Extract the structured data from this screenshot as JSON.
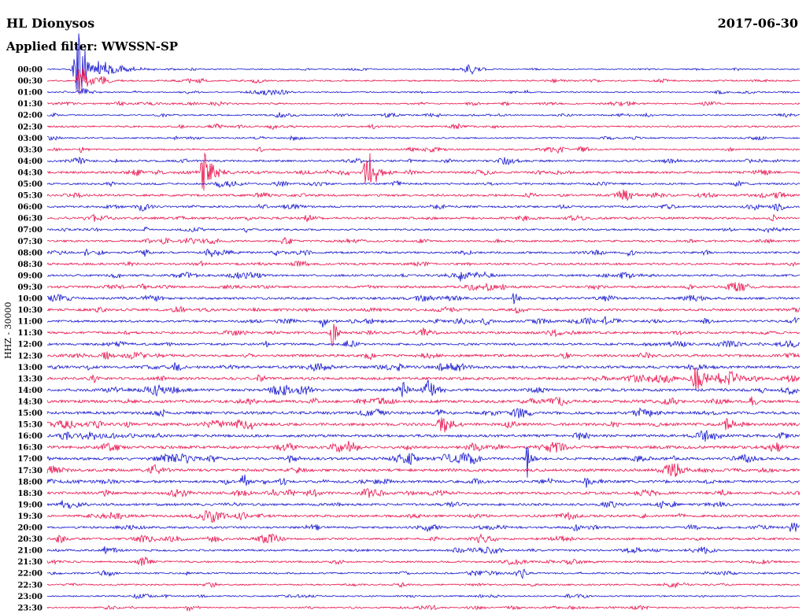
{
  "header": {
    "station": "HL Dionysos",
    "filter": "Applied filter: WWSSN-SP",
    "date": "2017-06-30",
    "channel_scale": "HHZ - 30000"
  },
  "chart_data": {
    "type": "line",
    "subtype": "helicorder",
    "title": "HL Dionysos",
    "date": "2017-06-30",
    "filter": "WWSSN-SP",
    "ylabel": "HHZ - 30000",
    "xlabel": "",
    "row_duration_minutes": 30,
    "x_axis": {
      "start": "00:00",
      "end": "24:00"
    },
    "grid": false,
    "legend": "none",
    "colors": {
      "blue": "#1313cd",
      "red": "#e8104c"
    },
    "rows": [
      {
        "time": "00:00",
        "color": "blue",
        "noise": 0.7
      },
      {
        "time": "00:30",
        "color": "red",
        "noise": 1.0
      },
      {
        "time": "01:00",
        "color": "blue",
        "noise": 0.8
      },
      {
        "time": "01:30",
        "color": "red",
        "noise": 0.9
      },
      {
        "time": "02:00",
        "color": "blue",
        "noise": 0.9
      },
      {
        "time": "02:30",
        "color": "red",
        "noise": 1.1
      },
      {
        "time": "03:00",
        "color": "blue",
        "noise": 1.0
      },
      {
        "time": "03:30",
        "color": "red",
        "noise": 1.1
      },
      {
        "time": "04:00",
        "color": "blue",
        "noise": 1.3
      },
      {
        "time": "04:30",
        "color": "red",
        "noise": 1.5
      },
      {
        "time": "05:00",
        "color": "blue",
        "noise": 1.3
      },
      {
        "time": "05:30",
        "color": "red",
        "noise": 1.5
      },
      {
        "time": "06:00",
        "color": "blue",
        "noise": 1.3
      },
      {
        "time": "06:30",
        "color": "red",
        "noise": 1.5
      },
      {
        "time": "07:00",
        "color": "blue",
        "noise": 1.2
      },
      {
        "time": "07:30",
        "color": "red",
        "noise": 1.3
      },
      {
        "time": "08:00",
        "color": "blue",
        "noise": 1.3
      },
      {
        "time": "08:30",
        "color": "red",
        "noise": 1.4
      },
      {
        "time": "09:00",
        "color": "blue",
        "noise": 1.4
      },
      {
        "time": "09:30",
        "color": "red",
        "noise": 1.5
      },
      {
        "time": "10:00",
        "color": "blue",
        "noise": 1.5
      },
      {
        "time": "10:30",
        "color": "red",
        "noise": 1.6
      },
      {
        "time": "11:00",
        "color": "blue",
        "noise": 1.5
      },
      {
        "time": "11:30",
        "color": "red",
        "noise": 1.6
      },
      {
        "time": "12:00",
        "color": "blue",
        "noise": 1.5
      },
      {
        "time": "12:30",
        "color": "red",
        "noise": 1.7
      },
      {
        "time": "13:00",
        "color": "blue",
        "noise": 1.8
      },
      {
        "time": "13:30",
        "color": "red",
        "noise": 1.8
      },
      {
        "time": "14:00",
        "color": "blue",
        "noise": 1.8
      },
      {
        "time": "14:30",
        "color": "red",
        "noise": 1.9
      },
      {
        "time": "15:00",
        "color": "blue",
        "noise": 1.9
      },
      {
        "time": "15:30",
        "color": "red",
        "noise": 1.9
      },
      {
        "time": "16:00",
        "color": "blue",
        "noise": 1.8
      },
      {
        "time": "16:30",
        "color": "red",
        "noise": 1.9
      },
      {
        "time": "17:00",
        "color": "blue",
        "noise": 1.8
      },
      {
        "time": "17:30",
        "color": "red",
        "noise": 1.8
      },
      {
        "time": "18:00",
        "color": "blue",
        "noise": 1.7
      },
      {
        "time": "18:30",
        "color": "red",
        "noise": 1.7
      },
      {
        "time": "19:00",
        "color": "blue",
        "noise": 1.6
      },
      {
        "time": "19:30",
        "color": "red",
        "noise": 1.6
      },
      {
        "time": "20:00",
        "color": "blue",
        "noise": 1.4
      },
      {
        "time": "20:30",
        "color": "red",
        "noise": 1.4
      },
      {
        "time": "21:00",
        "color": "blue",
        "noise": 1.3
      },
      {
        "time": "21:30",
        "color": "red",
        "noise": 1.2
      },
      {
        "time": "22:00",
        "color": "blue",
        "noise": 1.1
      },
      {
        "time": "22:30",
        "color": "red",
        "noise": 1.0
      },
      {
        "time": "23:00",
        "color": "blue",
        "noise": 0.9
      },
      {
        "time": "23:30",
        "color": "red",
        "noise": 0.9
      }
    ],
    "events": [
      {
        "row": 0,
        "x": 0.042,
        "amp": 58,
        "attack": 4,
        "decay": 10
      },
      {
        "row": 0,
        "x": 0.07,
        "amp": 10,
        "attack": 6,
        "decay": 30
      },
      {
        "row": 0,
        "x": 0.56,
        "amp": 9,
        "attack": 4,
        "decay": 10
      },
      {
        "row": 1,
        "x": 0.045,
        "amp": 20,
        "attack": 4,
        "decay": 12
      },
      {
        "row": 1,
        "x": 0.075,
        "amp": 6,
        "attack": 3,
        "decay": 10
      },
      {
        "row": 2,
        "x": 0.045,
        "amp": 8,
        "attack": 3,
        "decay": 10
      },
      {
        "row": 5,
        "x": 0.3,
        "amp": 4,
        "attack": 3,
        "decay": 8
      },
      {
        "row": 7,
        "x": 0.045,
        "amp": 4,
        "attack": 2,
        "decay": 6
      },
      {
        "row": 9,
        "x": 0.209,
        "amp": 26,
        "attack": 4,
        "decay": 12
      },
      {
        "row": 9,
        "x": 0.427,
        "amp": 30,
        "attack": 4,
        "decay": 10
      },
      {
        "row": 13,
        "x": 0.345,
        "amp": 5,
        "attack": 3,
        "decay": 8
      },
      {
        "row": 16,
        "x": 0.052,
        "amp": 5,
        "attack": 3,
        "decay": 6
      },
      {
        "row": 16,
        "x": 0.222,
        "amp": 4,
        "attack": 3,
        "decay": 6
      },
      {
        "row": 16,
        "x": 0.305,
        "amp": 5,
        "attack": 3,
        "decay": 6
      },
      {
        "row": 18,
        "x": 0.55,
        "amp": 4,
        "attack": 3,
        "decay": 6
      },
      {
        "row": 20,
        "x": 0.62,
        "amp": 7,
        "attack": 3,
        "decay": 8
      },
      {
        "row": 21,
        "x": 0.625,
        "amp": 6,
        "attack": 3,
        "decay": 8
      },
      {
        "row": 22,
        "x": 0.366,
        "amp": 7,
        "attack": 4,
        "decay": 10
      },
      {
        "row": 22,
        "x": 0.742,
        "amp": 6,
        "attack": 3,
        "decay": 8
      },
      {
        "row": 23,
        "x": 0.38,
        "amp": 24,
        "attack": 2,
        "decay": 4
      },
      {
        "row": 23,
        "x": 0.43,
        "amp": 5,
        "attack": 3,
        "decay": 6
      },
      {
        "row": 26,
        "x": 0.168,
        "amp": 6,
        "attack": 3,
        "decay": 8
      },
      {
        "row": 27,
        "x": 0.282,
        "amp": 5,
        "attack": 3,
        "decay": 6
      },
      {
        "row": 27,
        "x": 0.863,
        "amp": 16,
        "attack": 5,
        "decay": 14
      },
      {
        "row": 27,
        "x": 0.91,
        "amp": 13,
        "attack": 4,
        "decay": 10
      },
      {
        "row": 28,
        "x": 0.507,
        "amp": 13,
        "attack": 5,
        "decay": 12
      },
      {
        "row": 30,
        "x": 0.52,
        "amp": 5,
        "attack": 3,
        "decay": 8
      },
      {
        "row": 31,
        "x": 0.528,
        "amp": 12,
        "attack": 4,
        "decay": 10
      },
      {
        "row": 31,
        "x": 0.905,
        "amp": 10,
        "attack": 4,
        "decay": 10
      },
      {
        "row": 32,
        "x": 0.885,
        "amp": 6,
        "attack": 3,
        "decay": 8
      },
      {
        "row": 33,
        "x": 0.403,
        "amp": 6,
        "attack": 3,
        "decay": 8
      },
      {
        "row": 34,
        "x": 0.324,
        "amp": 6,
        "attack": 3,
        "decay": 8
      },
      {
        "row": 34,
        "x": 0.638,
        "amp": 24,
        "attack": 2,
        "decay": 4
      },
      {
        "row": 36,
        "x": 0.262,
        "amp": 11,
        "attack": 3,
        "decay": 7
      },
      {
        "row": 36,
        "x": 0.717,
        "amp": 7,
        "attack": 3,
        "decay": 8
      },
      {
        "row": 38,
        "x": 0.021,
        "amp": 9,
        "attack": 3,
        "decay": 8
      },
      {
        "row": 40,
        "x": 0.992,
        "amp": 10,
        "attack": 4,
        "decay": 8
      },
      {
        "row": 41,
        "x": 0.016,
        "amp": 6,
        "attack": 3,
        "decay": 8
      },
      {
        "row": 42,
        "x": 0.078,
        "amp": 5,
        "attack": 3,
        "decay": 8
      },
      {
        "row": 47,
        "x": 0.188,
        "amp": 5,
        "attack": 3,
        "decay": 8
      }
    ]
  }
}
